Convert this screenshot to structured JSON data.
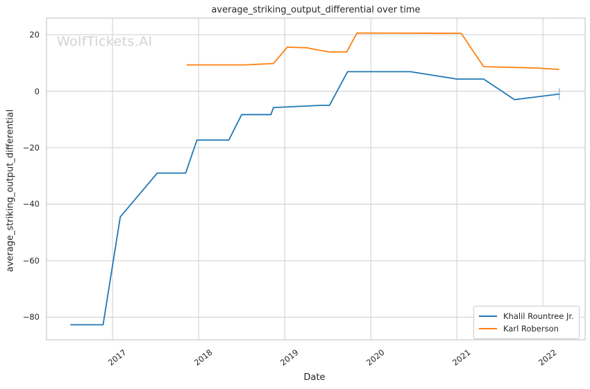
{
  "watermark": "WolfTickets.AI",
  "colors": {
    "series_blue": "#1f77b4",
    "series_orange": "#ff7f0e",
    "grid": "#cdcdcd",
    "spine": "#cbcbcb",
    "text": "#262626",
    "watermark": "#d3d3d3",
    "background": "#ffffff"
  },
  "chart_data": {
    "type": "line",
    "title": "average_striking_output_differential over time",
    "xlabel": "Date",
    "ylabel": "average_striking_output_differential",
    "xlim": [
      2016.233,
      2022.49
    ],
    "ylim": [
      -88,
      25.9
    ],
    "x_ticks": [
      2017,
      2018,
      2019,
      2020,
      2021,
      2022
    ],
    "y_ticks": [
      20,
      0,
      -20,
      -40,
      -60,
      -80
    ],
    "grid": true,
    "legend_position": "lower right",
    "series": [
      {
        "name": "Khalil Rountree Jr.",
        "color": "#1f77b4",
        "end_marker": "vertical-tick",
        "points": [
          [
            2016.51,
            -82.7
          ],
          [
            2016.89,
            -82.7
          ],
          [
            2017.09,
            -44.5
          ],
          [
            2017.52,
            -29.0
          ],
          [
            2017.85,
            -29.0
          ],
          [
            2017.98,
            -17.3
          ],
          [
            2018.35,
            -17.3
          ],
          [
            2018.5,
            -8.3
          ],
          [
            2018.84,
            -8.3
          ],
          [
            2018.87,
            -5.8
          ],
          [
            2019.43,
            -5.0
          ],
          [
            2019.52,
            -5.0
          ],
          [
            2019.73,
            6.9
          ],
          [
            2020.46,
            6.9
          ],
          [
            2021.0,
            4.3
          ],
          [
            2021.31,
            4.3
          ],
          [
            2021.67,
            -3.0
          ],
          [
            2022.19,
            -1.0
          ]
        ]
      },
      {
        "name": "Karl Roberson",
        "color": "#ff7f0e",
        "points": [
          [
            2017.86,
            9.3
          ],
          [
            2018.53,
            9.3
          ],
          [
            2018.87,
            9.8
          ],
          [
            2019.03,
            15.6
          ],
          [
            2019.25,
            15.4
          ],
          [
            2019.51,
            13.9
          ],
          [
            2019.72,
            13.9
          ],
          [
            2019.84,
            20.6
          ],
          [
            2021.05,
            20.5
          ],
          [
            2021.31,
            8.7
          ],
          [
            2021.93,
            8.2
          ],
          [
            2022.19,
            7.7
          ]
        ]
      }
    ]
  }
}
